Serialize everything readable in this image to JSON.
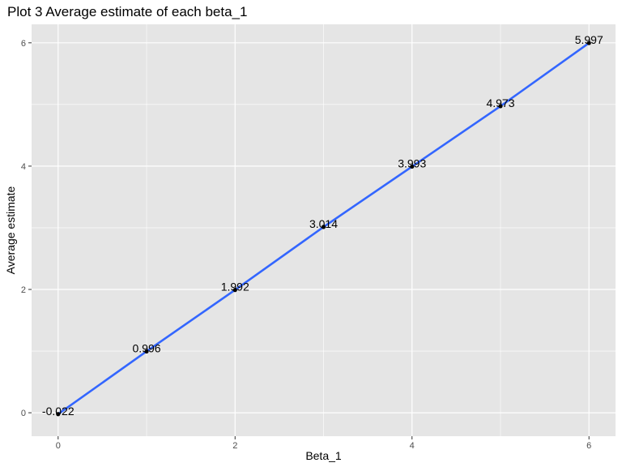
{
  "chart_data": {
    "type": "line",
    "title": "Plot 3 Average estimate of each beta_1",
    "xlabel": "Beta_1",
    "ylabel": "Average estimate",
    "xlim": [
      -0.3,
      6.3
    ],
    "ylim": [
      -0.38,
      6.3
    ],
    "x_ticks": [
      0,
      2,
      4,
      6
    ],
    "y_ticks": [
      0,
      2,
      4,
      6
    ],
    "grid": true,
    "legend": "none",
    "series": [
      {
        "x": [
          0,
          1,
          2,
          3,
          4,
          5,
          6
        ],
        "y": [
          -0.022,
          0.996,
          1.992,
          3.014,
          3.993,
          4.973,
          5.997
        ],
        "labels": [
          "-0.022",
          "0.996",
          "1.992",
          "3.014",
          "3.993",
          "4.973",
          "5.997"
        ],
        "color": "#3366ff",
        "point_color": "#000000"
      }
    ]
  },
  "colors": {
    "panel_background": "#e5e5e5",
    "grid": "#ffffff",
    "line": "#3366ff"
  }
}
